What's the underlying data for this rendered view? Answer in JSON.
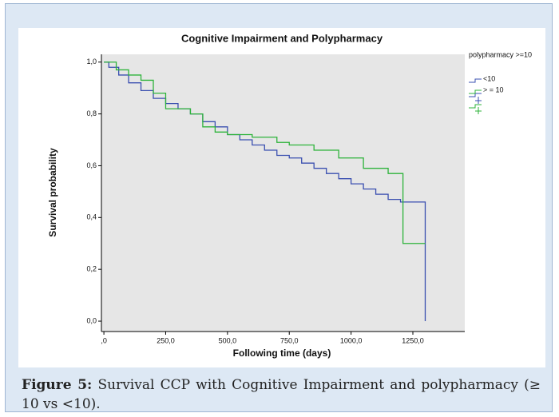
{
  "chart_data": {
    "type": "step",
    "title": "Cognitive Impairment and Polypharmacy",
    "x_label": "Following time (days)",
    "y_label": "Survival probability",
    "legend_title": "polypharmacy >=10",
    "legend_position": "right",
    "xlim": [
      -10,
      1460
    ],
    "ylim": [
      -0.04,
      1.03
    ],
    "xticks": [
      {
        "value": 0,
        "label": ",0"
      },
      {
        "value": 250,
        "label": "250,0"
      },
      {
        "value": 500,
        "label": "500,0"
      },
      {
        "value": 750,
        "label": "750,0"
      },
      {
        "value": 1000,
        "label": "1000,0"
      },
      {
        "value": 1250,
        "label": "1250,0"
      }
    ],
    "yticks": [
      {
        "value": 0,
        "label": "0,0"
      },
      {
        "value": 0.2,
        "label": "0,2"
      },
      {
        "value": 0.4,
        "label": "0,4"
      },
      {
        "value": 0.6,
        "label": "0,6"
      },
      {
        "value": 0.8,
        "label": "0,8"
      },
      {
        "value": 1,
        "label": "1,0"
      }
    ],
    "series": [
      {
        "name": "<10",
        "color": "#3a4fb0",
        "x": [
          0,
          20,
          60,
          100,
          150,
          200,
          250,
          300,
          350,
          400,
          450,
          500,
          550,
          600,
          650,
          700,
          750,
          800,
          850,
          900,
          950,
          1000,
          1050,
          1100,
          1150,
          1200,
          1300,
          1300
        ],
        "values": [
          1.0,
          0.98,
          0.95,
          0.92,
          0.89,
          0.86,
          0.84,
          0.82,
          0.8,
          0.77,
          0.75,
          0.72,
          0.7,
          0.68,
          0.66,
          0.64,
          0.63,
          0.61,
          0.59,
          0.57,
          0.55,
          0.53,
          0.51,
          0.49,
          0.47,
          0.46,
          0.46,
          0.0
        ]
      },
      {
        "name": "> = 10",
        "color": "#2db33a",
        "x": [
          0,
          50,
          100,
          150,
          200,
          250,
          350,
          400,
          450,
          500,
          600,
          650,
          700,
          750,
          850,
          950,
          1050,
          1150,
          1210,
          1300
        ],
        "values": [
          1.0,
          0.97,
          0.95,
          0.93,
          0.88,
          0.82,
          0.8,
          0.75,
          0.73,
          0.72,
          0.71,
          0.71,
          0.69,
          0.68,
          0.66,
          0.63,
          0.59,
          0.57,
          0.3,
          0.3
        ]
      }
    ]
  },
  "caption": {
    "label": "Figure 5:",
    "text": " Survival CCP with Cognitive Impairment and polypharmacy (≥ 10 vs <10)."
  }
}
